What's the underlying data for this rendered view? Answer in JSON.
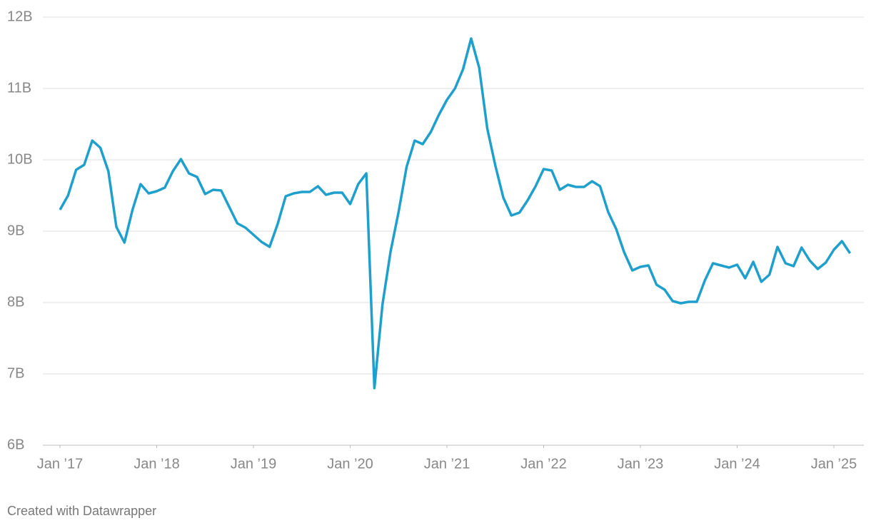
{
  "chart_data": {
    "type": "line",
    "x": [
      "2017-01",
      "2017-02",
      "2017-03",
      "2017-04",
      "2017-05",
      "2017-06",
      "2017-07",
      "2017-08",
      "2017-09",
      "2017-10",
      "2017-11",
      "2017-12",
      "2018-01",
      "2018-02",
      "2018-03",
      "2018-04",
      "2018-05",
      "2018-06",
      "2018-07",
      "2018-08",
      "2018-09",
      "2018-10",
      "2018-11",
      "2018-12",
      "2019-01",
      "2019-02",
      "2019-03",
      "2019-04",
      "2019-05",
      "2019-06",
      "2019-07",
      "2019-08",
      "2019-09",
      "2019-10",
      "2019-11",
      "2019-12",
      "2020-01",
      "2020-02",
      "2020-03",
      "2020-04",
      "2020-05",
      "2020-06",
      "2020-07",
      "2020-08",
      "2020-09",
      "2020-10",
      "2020-11",
      "2020-12",
      "2021-01",
      "2021-02",
      "2021-03",
      "2021-04",
      "2021-05",
      "2021-06",
      "2021-07",
      "2021-08",
      "2021-09",
      "2021-10",
      "2021-11",
      "2021-12",
      "2022-01",
      "2022-02",
      "2022-03",
      "2022-04",
      "2022-05",
      "2022-06",
      "2022-07",
      "2022-08",
      "2022-09",
      "2022-10",
      "2022-11",
      "2022-12",
      "2023-01",
      "2023-02",
      "2023-03",
      "2023-04",
      "2023-05",
      "2023-06",
      "2023-07",
      "2023-08",
      "2023-09",
      "2023-10",
      "2023-11",
      "2023-12",
      "2024-01",
      "2024-02",
      "2024-03",
      "2024-04",
      "2024-05",
      "2024-06",
      "2024-07",
      "2024-08",
      "2024-09",
      "2024-10",
      "2024-11",
      "2024-12",
      "2025-01",
      "2025-02",
      "2025-03"
    ],
    "series": [
      {
        "color": "#1f9fcb",
        "values": [
          9.3,
          9.5,
          9.86,
          9.93,
          10.27,
          10.17,
          9.84,
          9.06,
          8.84,
          9.3,
          9.66,
          9.53,
          9.56,
          9.61,
          9.84,
          10.01,
          9.81,
          9.76,
          9.52,
          9.58,
          9.57,
          9.34,
          9.11,
          9.05,
          8.95,
          8.85,
          8.78,
          9.1,
          9.49,
          9.53,
          9.55,
          9.55,
          9.63,
          9.51,
          9.54,
          9.54,
          9.38,
          9.66,
          9.81,
          6.8,
          7.97,
          8.71,
          9.27,
          9.9,
          10.27,
          10.22,
          10.39,
          10.63,
          10.84,
          11.0,
          11.27,
          11.7,
          11.29,
          10.44,
          9.92,
          9.47,
          9.22,
          9.26,
          9.43,
          9.63,
          9.87,
          9.85,
          9.58,
          9.65,
          9.62,
          9.62,
          9.7,
          9.63,
          9.27,
          9.03,
          8.7,
          8.45,
          8.5,
          8.52,
          8.25,
          8.18,
          8.02,
          7.99,
          8.01,
          8.01,
          8.31,
          8.55,
          8.52,
          8.49,
          8.53,
          8.34,
          8.57,
          8.29,
          8.39,
          8.78,
          8.55,
          8.51,
          8.77,
          8.59,
          8.47,
          8.56,
          8.74,
          8.86,
          8.69
        ]
      }
    ],
    "ylim": [
      6,
      12
    ],
    "yticks": [
      {
        "value": 6,
        "label": "6B"
      },
      {
        "value": 7,
        "label": "7B"
      },
      {
        "value": 8,
        "label": "8B"
      },
      {
        "value": 9,
        "label": "9B"
      },
      {
        "value": 10,
        "label": "10B"
      },
      {
        "value": 11,
        "label": "11B"
      },
      {
        "value": 12,
        "label": "12B"
      }
    ],
    "xticks": [
      {
        "value": "2017-01",
        "label": "Jan ’17"
      },
      {
        "value": "2018-01",
        "label": "Jan ’18"
      },
      {
        "value": "2019-01",
        "label": "Jan ’19"
      },
      {
        "value": "2020-01",
        "label": "Jan ’20"
      },
      {
        "value": "2021-01",
        "label": "Jan ’21"
      },
      {
        "value": "2022-01",
        "label": "Jan ’22"
      },
      {
        "value": "2023-01",
        "label": "Jan ’23"
      },
      {
        "value": "2024-01",
        "label": "Jan ’24"
      },
      {
        "value": "2025-01",
        "label": "Jan ’25"
      }
    ],
    "grid": true,
    "footer": "Created with Datawrapper"
  }
}
